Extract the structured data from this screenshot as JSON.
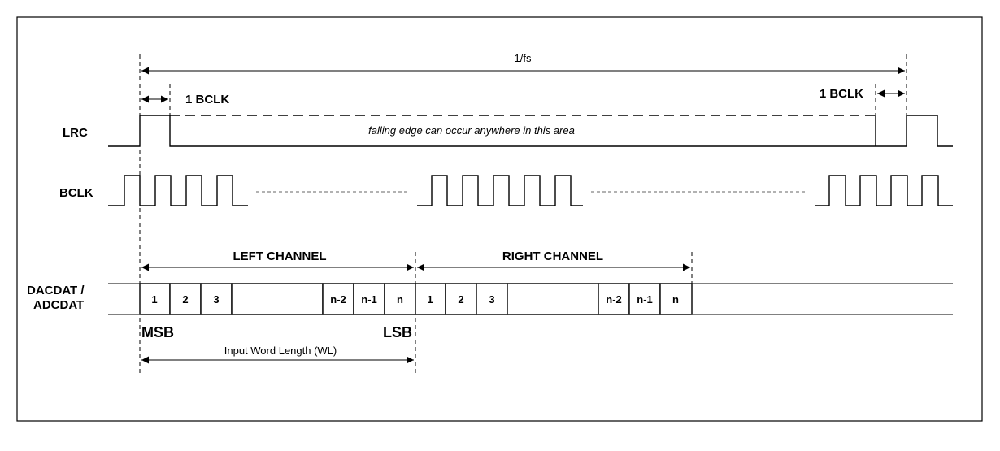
{
  "signals": {
    "lrc": "LRC",
    "bclk": "BCLK",
    "data_line1": "DACDAT /",
    "data_line2": "ADCDAT"
  },
  "annotations": {
    "period": "1/fs",
    "bclk_left": "1 BCLK",
    "bclk_right": "1 BCLK",
    "falling_edge": "falling edge can occur anywhere in this area",
    "left_channel": "LEFT CHANNEL",
    "right_channel": "RIGHT CHANNEL",
    "msb": "MSB",
    "lsb": "LSB",
    "word_length": "Input Word Length (WL)"
  },
  "left_bits": [
    "1",
    "2",
    "3",
    "n-2",
    "n-1",
    "n"
  ],
  "right_bits": [
    "1",
    "2",
    "3",
    "n-2",
    "n-1",
    "n"
  ]
}
